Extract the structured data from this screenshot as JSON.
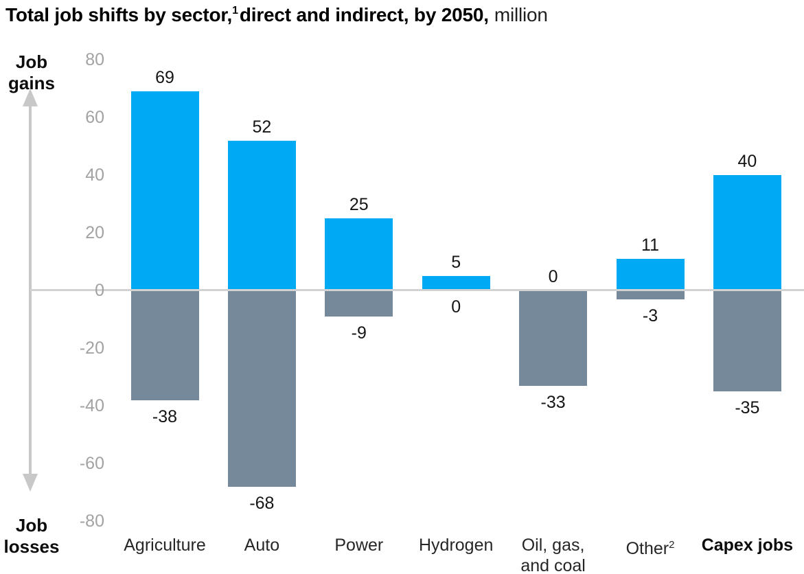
{
  "title": {
    "main": "Total job shifts by sector,",
    "footnote_marker": "1",
    "main_cont": "direct and indirect, by 2050,",
    "unit": "million"
  },
  "y_axis": {
    "gains_label": "Job\ngains",
    "losses_label": "Job\nlosses"
  },
  "chart_data": {
    "type": "bar",
    "title": "Total job shifts by sector, direct and indirect, by 2050",
    "unit": "million",
    "categories": [
      "Agriculture",
      "Auto",
      "Power",
      "Hydrogen",
      "Oil, gas,\nand coal",
      "Other",
      "Capex jobs"
    ],
    "category_superscripts": [
      "",
      "",
      "",
      "",
      "",
      "2",
      ""
    ],
    "category_bold": [
      false,
      false,
      false,
      false,
      false,
      false,
      true
    ],
    "series": [
      {
        "name": "Job gains",
        "color": "#00A9F4",
        "values": [
          69,
          52,
          25,
          5,
          0,
          11,
          40
        ]
      },
      {
        "name": "Job losses",
        "color": "#75899A",
        "values": [
          -38,
          -68,
          -9,
          0,
          -33,
          -3,
          -35
        ]
      }
    ],
    "ylim": [
      -80,
      80
    ],
    "y_ticks": [
      80,
      60,
      40,
      20,
      0,
      -20,
      -40,
      -60,
      -80
    ],
    "grid": false,
    "legend_position": "none"
  },
  "colors": {
    "gain_bar": "#00A9F4",
    "loss_bar": "#75899A",
    "zero_line": "#D2D2D2",
    "arrow": "#C8C8C8",
    "tick_label": "#A2A2A2",
    "value_label": "#151515",
    "category_label": "#262626"
  }
}
